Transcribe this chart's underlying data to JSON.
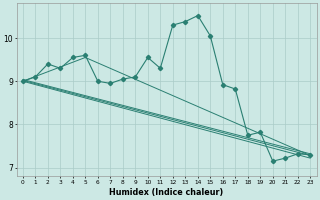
{
  "title": "",
  "xlabel": "Humidex (Indice chaleur)",
  "xlim": [
    -0.5,
    23.5
  ],
  "ylim": [
    6.8,
    10.8
  ],
  "xticks": [
    0,
    1,
    2,
    3,
    4,
    5,
    6,
    7,
    8,
    9,
    10,
    11,
    12,
    13,
    14,
    15,
    16,
    17,
    18,
    19,
    20,
    21,
    22,
    23
  ],
  "yticks": [
    7,
    8,
    9,
    10
  ],
  "bg_color": "#cce8e4",
  "grid_color": "#aaccc8",
  "line_color": "#2a7f72",
  "main_series": {
    "x": [
      0,
      1,
      2,
      3,
      4,
      5,
      6,
      7,
      8,
      9,
      10,
      11,
      12,
      13,
      14,
      15,
      16,
      17,
      18,
      19,
      20,
      21,
      22,
      23
    ],
    "y": [
      9.0,
      9.1,
      9.4,
      9.3,
      9.55,
      9.6,
      9.0,
      8.95,
      9.05,
      9.1,
      9.55,
      9.3,
      10.3,
      10.38,
      10.52,
      10.05,
      8.92,
      8.82,
      7.75,
      7.82,
      7.15,
      7.22,
      7.32,
      7.3
    ]
  },
  "trend_lines": [
    {
      "x": [
        0,
        23
      ],
      "y": [
        9.02,
        7.28
      ]
    },
    {
      "x": [
        0,
        23
      ],
      "y": [
        9.0,
        7.22
      ]
    },
    {
      "x": [
        0,
        23
      ],
      "y": [
        9.04,
        7.32
      ]
    },
    {
      "x": [
        0,
        5,
        23
      ],
      "y": [
        9.0,
        9.55,
        7.28
      ]
    }
  ]
}
